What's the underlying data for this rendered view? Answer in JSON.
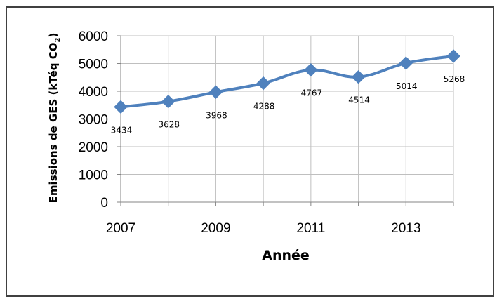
{
  "chart_data": {
    "type": "line",
    "x": [
      2007,
      2008,
      2009,
      2010,
      2011,
      2012,
      2013,
      2014
    ],
    "series": [
      {
        "values": [
          3434,
          3628,
          3968,
          4288,
          4767,
          4514,
          5014,
          5268
        ]
      }
    ],
    "data_labels": [
      "3434",
      "3628",
      "3968",
      "4288",
      "4767",
      "4514",
      "5014",
      "5268"
    ],
    "xlabel": "Année",
    "ylabel_main": "Emissions de GES (kTéq CO",
    "ylabel_subscript": "2",
    "ylabel_close": ")",
    "xticks": [
      "2007",
      "2009",
      "2011",
      "2013"
    ],
    "yticks": [
      "0",
      "1000",
      "2000",
      "3000",
      "4000",
      "5000",
      "6000"
    ],
    "ylim": [
      0,
      6000
    ],
    "grid": true,
    "line_color": "#4F81BD",
    "marker": "diamond"
  }
}
